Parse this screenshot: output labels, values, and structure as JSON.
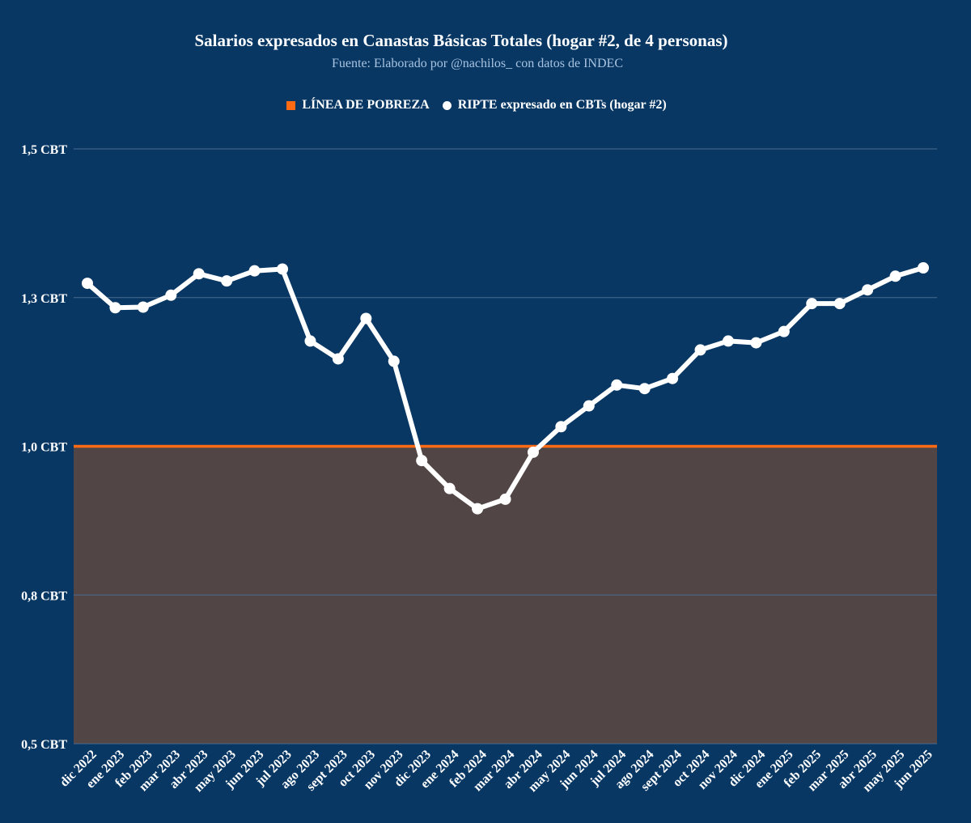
{
  "title": "Salarios expresados en Canastas Básicas Totales (hogar #2, de 4 personas)",
  "subtitle": "Fuente: Elaborado por @nachilos_ con datos de INDEC",
  "colors": {
    "background": "#083764",
    "poverty_line": "#ff6a13",
    "below_poverty_fill": "#524545",
    "series": "#ffffff",
    "gridline": "#4a6b8f"
  },
  "chart_data": {
    "type": "line",
    "title": "Salarios expresados en Canastas Básicas Totales (hogar #2, de 4 personas)",
    "subtitle": "Fuente: Elaborado por @nachilos_ con datos de INDEC",
    "xlabel": "",
    "ylabel": "",
    "ylim": [
      0.5,
      1.5
    ],
    "y_ticks": [
      0.5,
      0.75,
      1.0,
      1.25,
      1.5
    ],
    "y_tick_labels": [
      "0,5 CBT",
      "0,8 CBT",
      "1,0 CBT",
      "1,3 CBT",
      "1,5 CBT"
    ],
    "grid": true,
    "legend_position": "top-center",
    "categories": [
      "dic 2022",
      "ene 2023",
      "feb 2023",
      "mar 2023",
      "abr 2023",
      "may 2023",
      "jun 2023",
      "jul 2023",
      "ago 2023",
      "sept 2023",
      "oct 2023",
      "nov 2023",
      "dic 2023",
      "ene 2024",
      "feb 2024",
      "mar 2024",
      "abr 2024",
      "may 2024",
      "jun 2024",
      "jul 2024",
      "ago 2024",
      "sept 2024",
      "oct 2024",
      "nov 2024",
      "dic 2024",
      "ene 2025",
      "feb 2025",
      "mar 2025",
      "abr 2025",
      "may 2025",
      "jun 2025"
    ],
    "series": [
      {
        "name": "LÍNEA DE POBREZA",
        "type": "area",
        "values": [
          1.0,
          1.0,
          1.0,
          1.0,
          1.0,
          1.0,
          1.0,
          1.0,
          1.0,
          1.0,
          1.0,
          1.0,
          1.0,
          1.0,
          1.0,
          1.0,
          1.0,
          1.0,
          1.0,
          1.0,
          1.0,
          1.0,
          1.0,
          1.0,
          1.0,
          1.0,
          1.0,
          1.0,
          1.0,
          1.0,
          1.0
        ]
      },
      {
        "name": "RIPTE expresado en CBTs (hogar #2)",
        "type": "line",
        "values": [
          1.274,
          1.233,
          1.234,
          1.254,
          1.29,
          1.278,
          1.295,
          1.298,
          1.177,
          1.147,
          1.215,
          1.143,
          0.976,
          0.929,
          0.895,
          0.911,
          0.99,
          1.033,
          1.068,
          1.103,
          1.097,
          1.114,
          1.162,
          1.177,
          1.174,
          1.193,
          1.24,
          1.24,
          1.263,
          1.286,
          1.3
        ]
      }
    ]
  }
}
